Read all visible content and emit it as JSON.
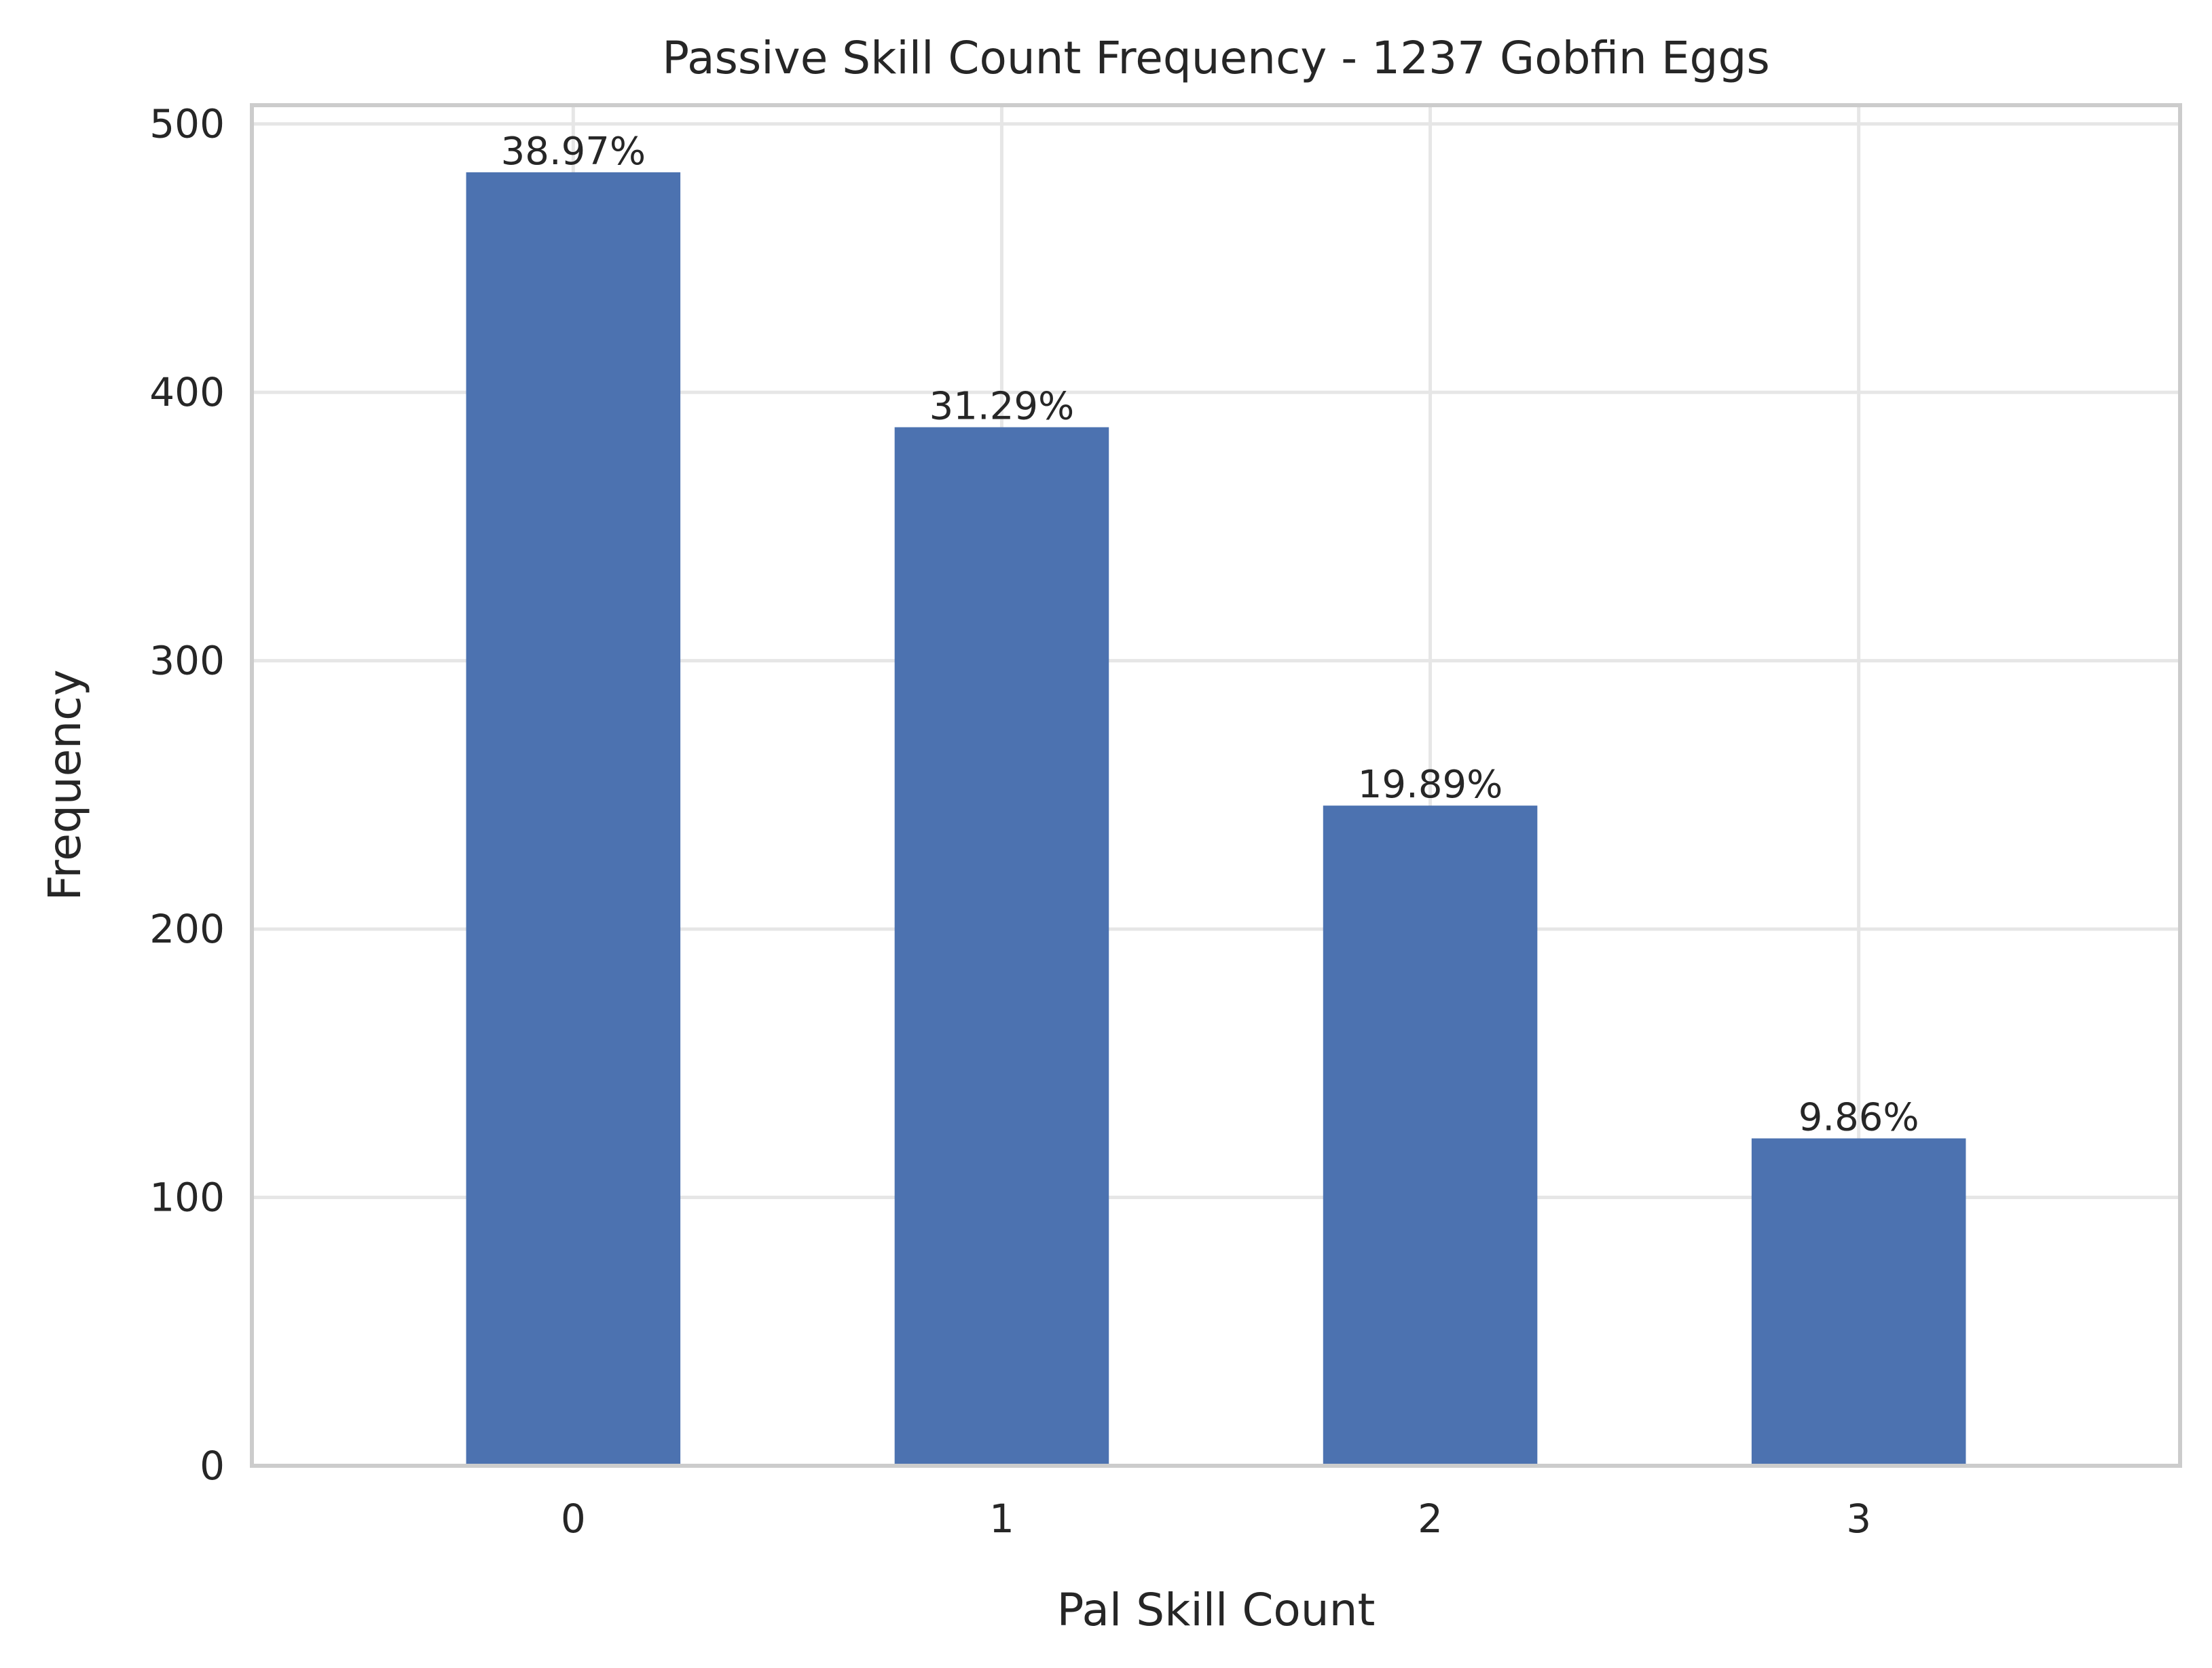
{
  "chart_data": {
    "type": "bar",
    "title": "Passive Skill Count Frequency - 1237 Gobfin Eggs",
    "xlabel": "Pal Skill Count",
    "ylabel": "Frequency",
    "categories": [
      "0",
      "1",
      "2",
      "3"
    ],
    "values": [
      482,
      387,
      246,
      122
    ],
    "data_labels": [
      "38.97%",
      "31.29%",
      "19.89%",
      "9.86%"
    ],
    "yticks": [
      0,
      100,
      200,
      300,
      400,
      500
    ],
    "ylim": [
      0,
      507
    ],
    "grid": true,
    "bar_color": "#4c72b0"
  }
}
